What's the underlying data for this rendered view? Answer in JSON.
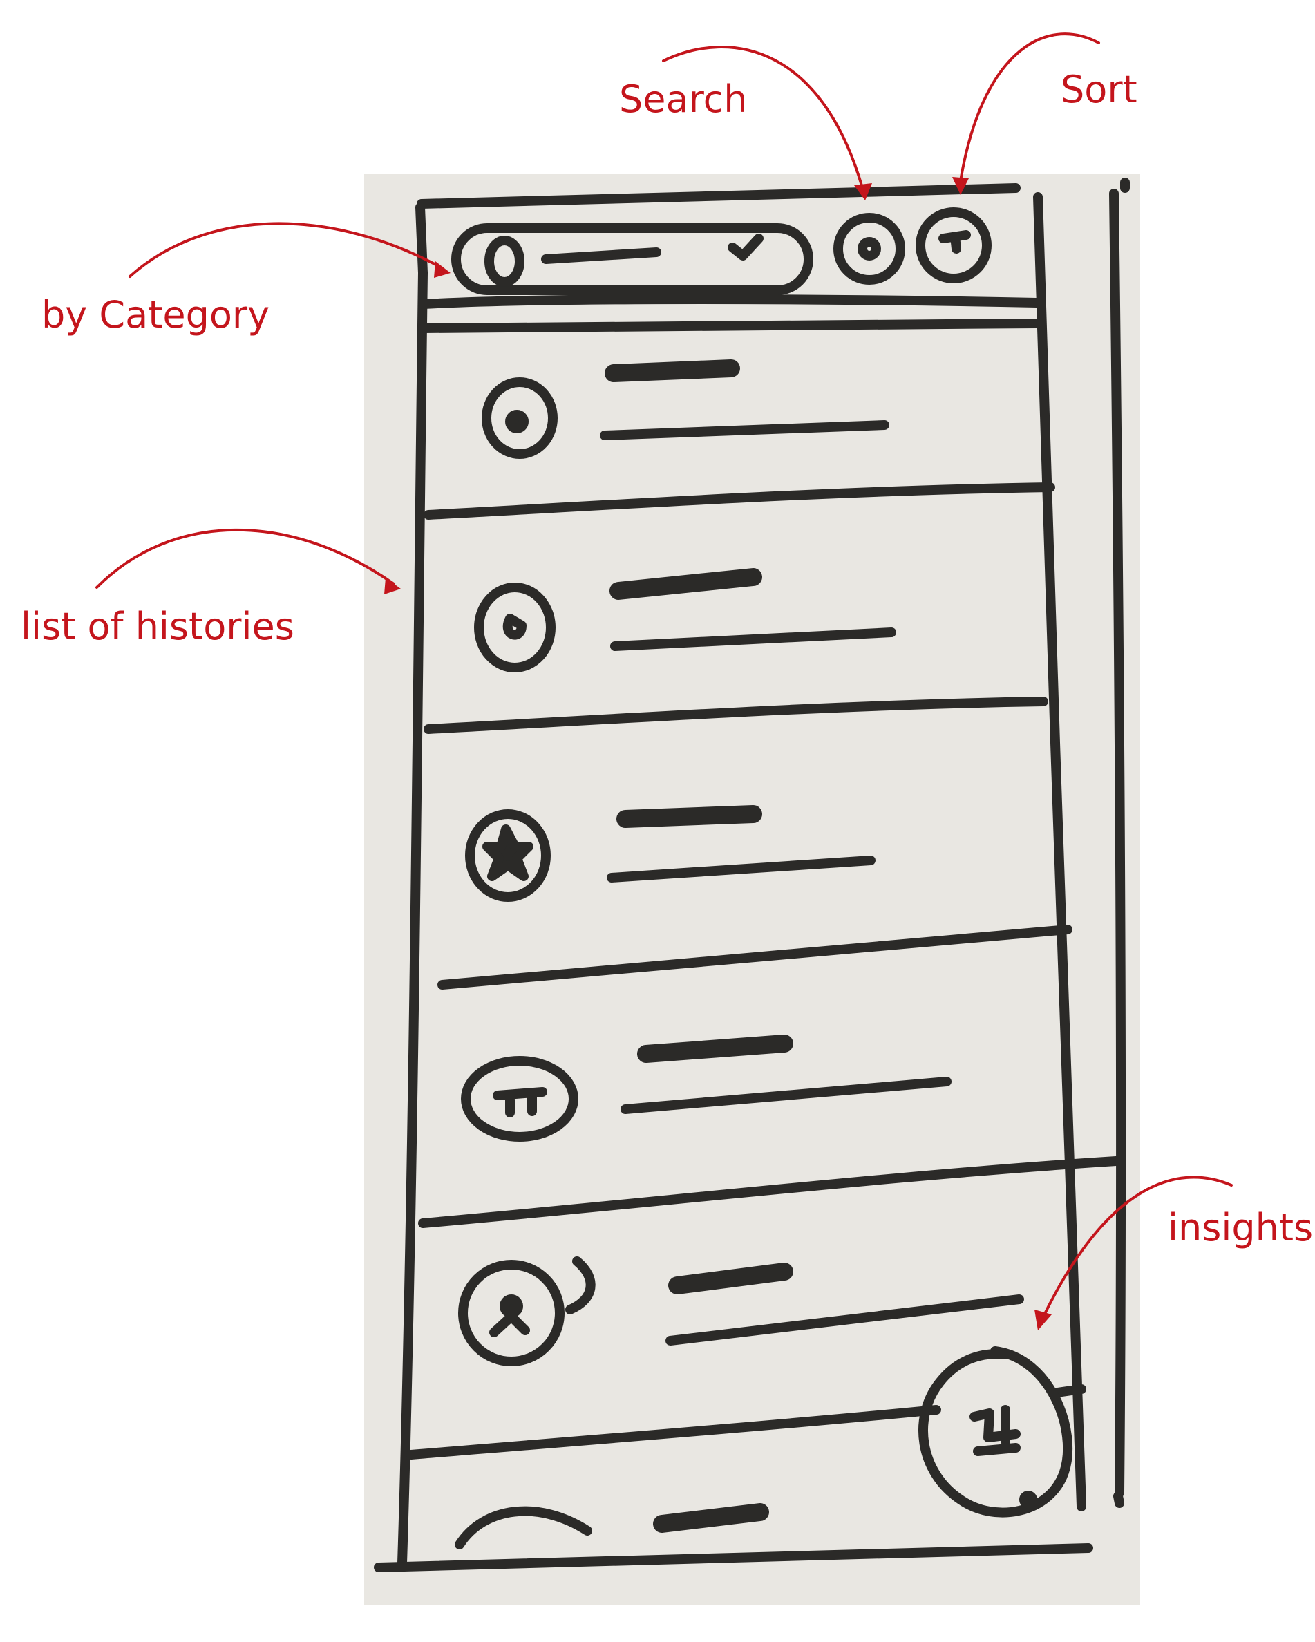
{
  "annotations": {
    "search": "Search",
    "sort": "Sort",
    "by_category": "by Category",
    "list_of_histories": "list of histories",
    "insights": "insights"
  },
  "colors": {
    "annotation": "#c4151c",
    "ink": "#2b2a28",
    "paper": "#e9e7e2"
  },
  "toolbar": {
    "category_dropdown_icon": "circle-icon",
    "category_dropdown_chevron": "chevron-down-icon",
    "search_icon": "search-icon",
    "sort_icon": "sort-icon"
  },
  "history_list": {
    "items": [
      {
        "icon": "dot-circle-icon"
      },
      {
        "icon": "drop-icon"
      },
      {
        "icon": "star-icon"
      },
      {
        "icon": "pi-icon"
      },
      {
        "icon": "person-icon"
      }
    ]
  },
  "fab": {
    "icon": "insights-icon"
  }
}
